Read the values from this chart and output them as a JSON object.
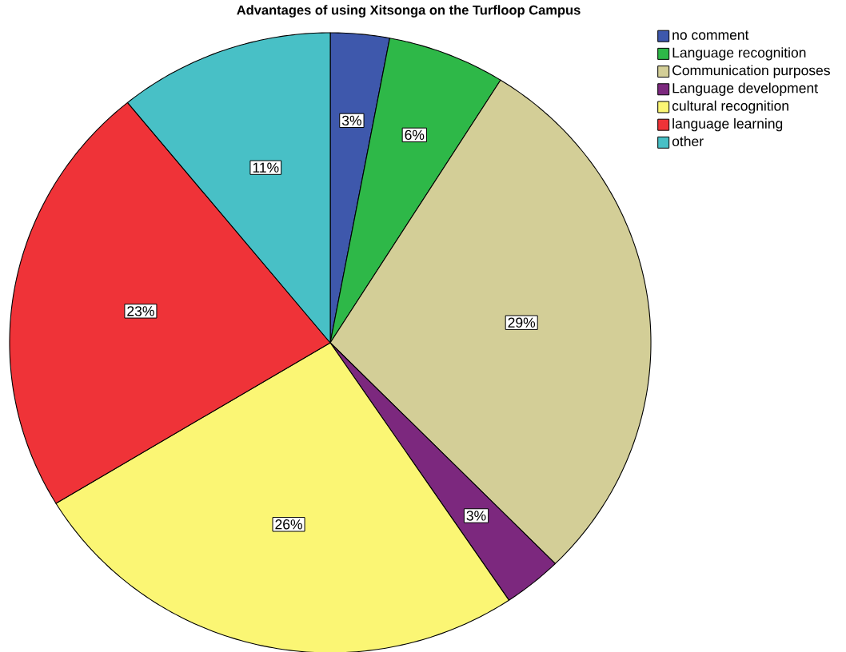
{
  "chart_data": {
    "type": "pie",
    "title": "Advantages of using Xitsonga on the Turfloop Campus",
    "categories": [
      "no comment",
      "Language recognition",
      "Communication purposes",
      "Language development",
      "cultural recognition",
      "language learning",
      "other"
    ],
    "values": [
      3,
      6,
      29,
      3,
      26,
      23,
      11
    ],
    "value_labels": [
      "3%",
      "6%",
      "29%",
      "3%",
      "26%",
      "23%",
      "11%"
    ],
    "colors": [
      "#3e58ac",
      "#2eb848",
      "#d3ce97",
      "#7c287e",
      "#fbf674",
      "#ef3338",
      "#48c0c6"
    ],
    "legend": "top right"
  }
}
